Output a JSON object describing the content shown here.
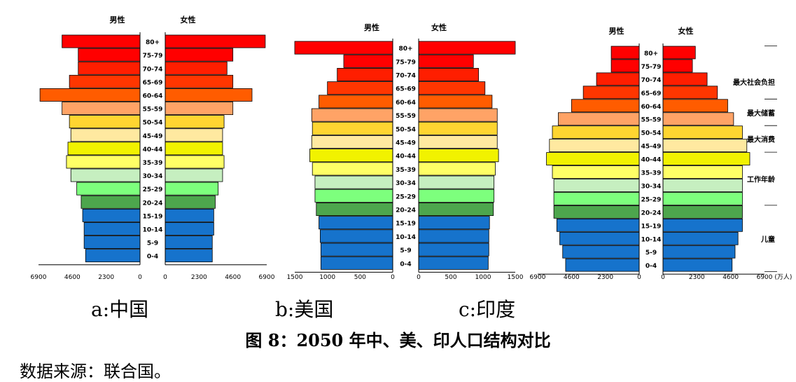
{
  "chart_data": [
    {
      "type": "bar",
      "subtitle": "a:中国",
      "left_label": "男性",
      "right_label": "女性",
      "categories": [
        "80+",
        "75-79",
        "70-74",
        "65-69",
        "60-64",
        "55-59",
        "50-54",
        "45-49",
        "40-44",
        "35-39",
        "30-34",
        "25-29",
        "20-24",
        "15-19",
        "10-14",
        "5-9",
        "0-4"
      ],
      "series": [
        {
          "name": "男性",
          "values": [
            5300,
            4200,
            4200,
            4800,
            6800,
            5300,
            4800,
            4700,
            4900,
            5000,
            4700,
            4300,
            4000,
            3900,
            3800,
            3800,
            3700
          ]
        },
        {
          "name": "女性",
          "values": [
            6800,
            4600,
            4200,
            4600,
            5900,
            4600,
            4000,
            3900,
            3900,
            4000,
            3900,
            3600,
            3400,
            3300,
            3300,
            3200,
            3200
          ]
        }
      ],
      "xticks_left": [
        "6900",
        "4600",
        "2300",
        "0"
      ],
      "xticks_right": [
        "0",
        "2300",
        "4600",
        "6900"
      ],
      "xlim": [
        0,
        6900
      ]
    },
    {
      "type": "bar",
      "subtitle": "b:美国",
      "left_label": "男性",
      "right_label": "女性",
      "categories": [
        "80+",
        "75-79",
        "70-74",
        "65-69",
        "60-64",
        "55-59",
        "50-54",
        "45-49",
        "40-44",
        "35-39",
        "30-34",
        "25-29",
        "20-24",
        "15-19",
        "10-14",
        "5-9",
        "0-4"
      ],
      "series": [
        {
          "name": "男性",
          "values": [
            1500,
            750,
            850,
            1000,
            1130,
            1240,
            1230,
            1240,
            1270,
            1230,
            1190,
            1190,
            1170,
            1130,
            1110,
            1100,
            1100
          ]
        },
        {
          "name": "女性",
          "values": [
            1500,
            850,
            930,
            1030,
            1140,
            1220,
            1220,
            1220,
            1240,
            1190,
            1170,
            1170,
            1160,
            1100,
            1090,
            1090,
            1080
          ]
        }
      ],
      "xticks_left": [
        "1500",
        "1000",
        "500",
        "0"
      ],
      "xticks_right": [
        "0",
        "500",
        "1000",
        "1500"
      ],
      "xlim": [
        0,
        1500
      ]
    },
    {
      "type": "bar",
      "subtitle": "c:印度",
      "left_label": "男性",
      "right_label": "女性",
      "categories": [
        "80+",
        "75-79",
        "70-74",
        "65-69",
        "60-64",
        "55-59",
        "50-54",
        "45-49",
        "40-44",
        "35-39",
        "30-34",
        "25-29",
        "20-24",
        "15-19",
        "10-14",
        "5-9",
        "0-4"
      ],
      "series": [
        {
          "name": "男性",
          "values": [
            1900,
            1900,
            2900,
            3800,
            4600,
            5500,
            5900,
            6100,
            6300,
            5900,
            5800,
            5800,
            5800,
            5600,
            5400,
            5200,
            5000
          ]
        },
        {
          "name": "女性",
          "values": [
            2200,
            2000,
            3000,
            3700,
            4400,
            4800,
            5400,
            5700,
            5900,
            5400,
            5400,
            5400,
            5400,
            5400,
            5100,
            4900,
            4700
          ]
        }
      ],
      "xticks_left": [
        "6900",
        "4600",
        "2300",
        "0"
      ],
      "xticks_right": [
        "0",
        "2300",
        "4600",
        "6900 (万人)"
      ],
      "xlim": [
        0,
        6900
      ],
      "annotations": [
        "最大社会负担",
        "最大储蓄",
        "最大消费",
        "工作年龄",
        "儿童"
      ]
    }
  ],
  "colors": [
    "#ff0000",
    "#ff0000",
    "#ff1e00",
    "#ff3600",
    "#ff5c00",
    "#ffa366",
    "#ffd531",
    "#ffe9a0",
    "#f1f200",
    "#ffff66",
    "#c6efc0",
    "#7dff7d",
    "#4da64d",
    "#1673cc",
    "#1673cc",
    "#1673cc",
    "#1673cc"
  ],
  "figure_title": "图 8：2050 年中、美、印人口结构对比",
  "source": "数据来源：联合国。"
}
